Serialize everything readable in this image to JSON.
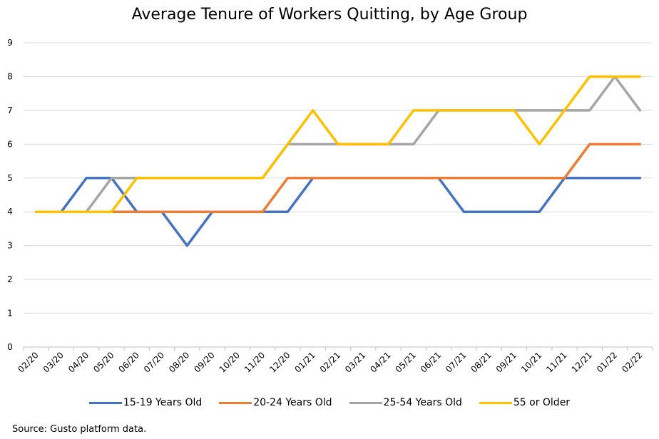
{
  "chart_data": {
    "type": "line",
    "title": "Average Tenure of Workers Quitting, by Age Group",
    "xlabel": "",
    "ylabel": "",
    "categories": [
      "02/20",
      "03/20",
      "04/20",
      "05/20",
      "06/20",
      "07/20",
      "08/20",
      "09/20",
      "10/20",
      "11/20",
      "12/20",
      "01/21",
      "02/21",
      "03/21",
      "04/21",
      "05/21",
      "06/21",
      "07/21",
      "08/21",
      "09/21",
      "10/21",
      "11/21",
      "12/21",
      "01/22",
      "02/22"
    ],
    "ylim": [
      0,
      9
    ],
    "yticks": [
      "0",
      "1",
      "2",
      "3",
      "4",
      "5",
      "6",
      "7",
      "8",
      "9"
    ],
    "grid": true,
    "legend_position": "bottom",
    "series": [
      {
        "name": "15-19 Years Old",
        "color": "#4472C4",
        "values": [
          4,
          4,
          5,
          5,
          4,
          4,
          3,
          4,
          4,
          4,
          4,
          5,
          5,
          5,
          5,
          5,
          5,
          4,
          4,
          4,
          4,
          5,
          5,
          5,
          5
        ]
      },
      {
        "name": "20-24 Years Old",
        "color": "#ED7D31",
        "values": [
          4,
          4,
          4,
          4,
          4,
          4,
          4,
          4,
          4,
          4,
          5,
          5,
          5,
          5,
          5,
          5,
          5,
          5,
          5,
          5,
          5,
          5,
          6,
          6,
          6
        ]
      },
      {
        "name": "25-54 Years Old",
        "color": "#A5A5A5",
        "values": [
          4,
          4,
          4,
          5,
          5,
          5,
          5,
          5,
          5,
          5,
          6,
          6,
          6,
          6,
          6,
          6,
          7,
          7,
          7,
          7,
          7,
          7,
          7,
          8,
          7
        ]
      },
      {
        "name": "55 or Older",
        "color": "#FFC000",
        "values": [
          4,
          4,
          4,
          4,
          5,
          5,
          5,
          5,
          5,
          5,
          6,
          7,
          6,
          6,
          6,
          7,
          7,
          7,
          7,
          7,
          6,
          7,
          8,
          8,
          8
        ]
      }
    ]
  },
  "source": "Source: Gusto platform data."
}
